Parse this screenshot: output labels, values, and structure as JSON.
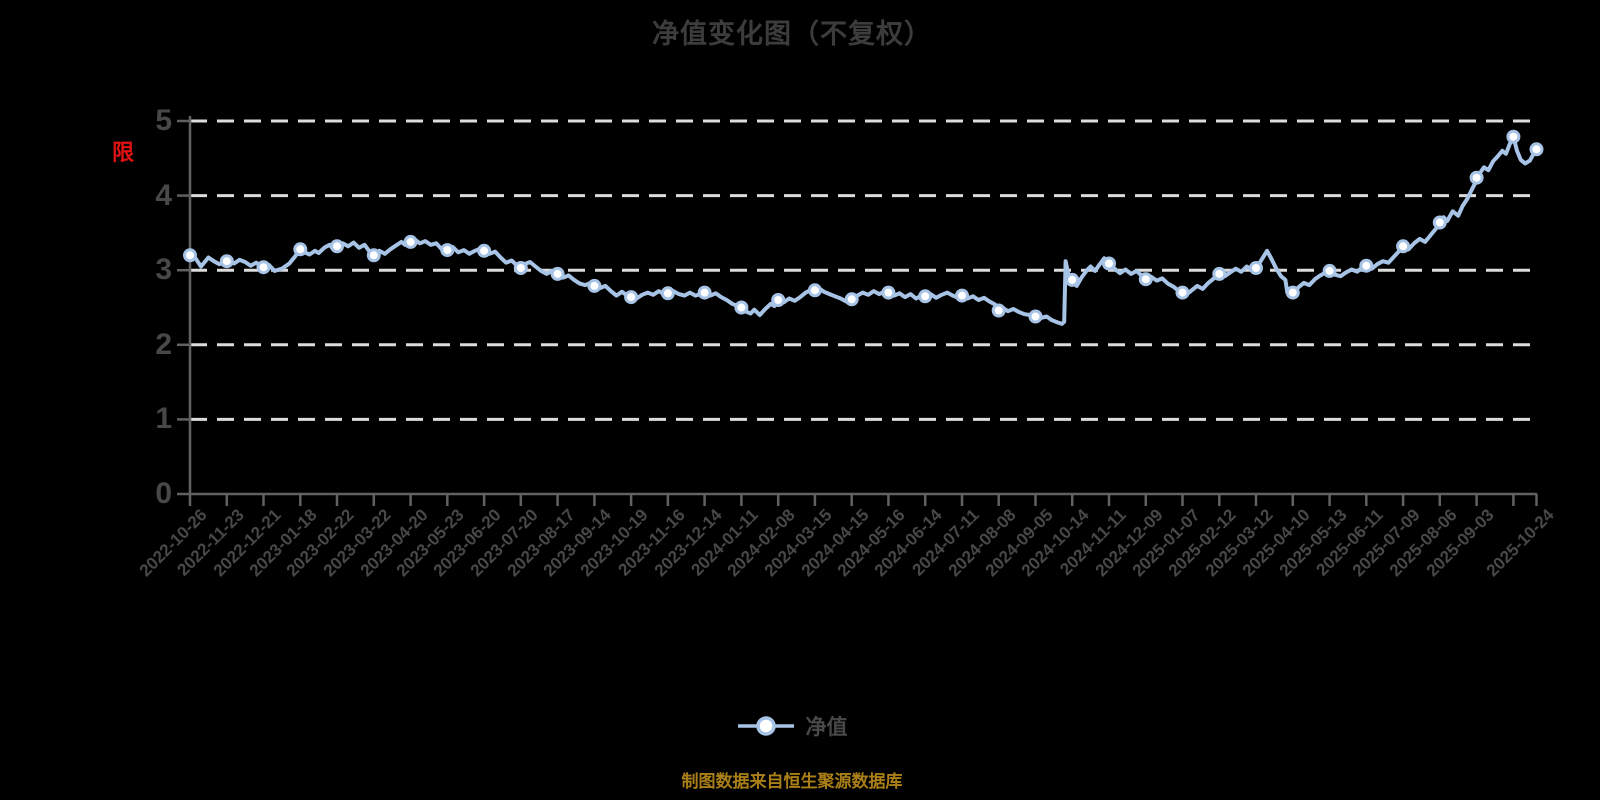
{
  "title": "净值变化图（不复权）",
  "watermark": "限",
  "legend": {
    "label": "净值"
  },
  "footer": "制图数据来自恒生聚源数据库",
  "colors": {
    "background": "#000000",
    "line": "#a7c3e6",
    "marker_fill": "#ffffff",
    "grid": "#dcdcdc",
    "axis": "#616161",
    "title_text": "#3c3c3c",
    "tick_text": "#484848",
    "legend_text": "#464646",
    "footer_text": "#aa7f18",
    "watermark_red": "#e31212"
  },
  "chart_data": {
    "type": "line",
    "title": "净值变化图（不复权）",
    "series_name": "净值",
    "ylabel": "",
    "xlabel": "",
    "ylim": [
      0,
      5
    ],
    "y_ticks": [
      0,
      1,
      2,
      3,
      4,
      5
    ],
    "grid": "horizontal-dashed-white",
    "legend_position": "bottom-center",
    "x_tick_labels": [
      "2022-10-26",
      "2022-11-23",
      "2022-12-21",
      "2023-01-18",
      "2023-02-22",
      "2023-03-22",
      "2023-04-20",
      "2023-05-23",
      "2023-06-20",
      "2023-07-20",
      "2023-08-17",
      "2023-09-14",
      "2023-10-19",
      "2023-11-16",
      "2023-12-14",
      "2024-01-11",
      "2024-02-08",
      "2024-03-15",
      "2024-04-15",
      "2024-05-16",
      "2024-06-14",
      "2024-07-11",
      "2024-08-08",
      "2024-09-05",
      "2024-10-14",
      "2024-11-11",
      "2024-12-09",
      "2025-01-07",
      "2025-02-12",
      "2025-03-12",
      "2025-04-10",
      "2025-05-13",
      "2025-06-11",
      "2025-07-09",
      "2025-08-06",
      "2025-09-03",
      "2025-10-24"
    ],
    "x_label_index": [
      0,
      1,
      2,
      3,
      4,
      5,
      6,
      7,
      8,
      9,
      10,
      11,
      12,
      13,
      14,
      15,
      16,
      17,
      18,
      19,
      20,
      21,
      22,
      23,
      24,
      25,
      26,
      27,
      28,
      29,
      30,
      31,
      32,
      33,
      34,
      35,
      36.63
    ],
    "all_tick_index": [
      0,
      1,
      2,
      3,
      4,
      5,
      6,
      7,
      8,
      9,
      10,
      11,
      12,
      13,
      14,
      15,
      16,
      17,
      18,
      19,
      20,
      21,
      22,
      23,
      24,
      25,
      26,
      27,
      28,
      29,
      30,
      31,
      32,
      33,
      34,
      35,
      36,
      36.63
    ],
    "markers": {
      "index": [
        0,
        1,
        2,
        3,
        4,
        5,
        6,
        7,
        8,
        9,
        10,
        11,
        12,
        13,
        14,
        15,
        16,
        17,
        18,
        19,
        20,
        21,
        22,
        23,
        24,
        25,
        26,
        27,
        28,
        29,
        30,
        31,
        32,
        33,
        34,
        35,
        36,
        36.63
      ],
      "values": [
        3.2,
        3.12,
        3.04,
        3.28,
        3.32,
        3.2,
        3.38,
        3.27,
        3.26,
        3.03,
        2.95,
        2.79,
        2.64,
        2.69,
        2.7,
        2.5,
        2.6,
        2.73,
        2.61,
        2.7,
        2.65,
        2.66,
        2.46,
        2.38,
        2.87,
        3.09,
        2.88,
        2.7,
        2.95,
        3.03,
        2.7,
        2.99,
        3.06,
        3.32,
        3.64,
        4.24,
        4.79,
        4.62
      ]
    },
    "line_path": [
      [
        0,
        3.2
      ],
      [
        0.15,
        3.16
      ],
      [
        0.3,
        3.05
      ],
      [
        0.5,
        3.17
      ],
      [
        0.65,
        3.12
      ],
      [
        0.8,
        3.08
      ],
      [
        1,
        3.12
      ],
      [
        1.2,
        3.09
      ],
      [
        1.35,
        3.14
      ],
      [
        1.5,
        3.11
      ],
      [
        1.65,
        3.06
      ],
      [
        1.8,
        3.1
      ],
      [
        2,
        3.04
      ],
      [
        2.15,
        3.07
      ],
      [
        2.3,
        2.99
      ],
      [
        2.5,
        3.02
      ],
      [
        2.7,
        3.09
      ],
      [
        2.85,
        3.18
      ],
      [
        3,
        3.28
      ],
      [
        3.12,
        3.24
      ],
      [
        3.25,
        3.21
      ],
      [
        3.4,
        3.26
      ],
      [
        3.5,
        3.23
      ],
      [
        3.65,
        3.3
      ],
      [
        3.8,
        3.34
      ],
      [
        3.9,
        3.28
      ],
      [
        4,
        3.32
      ],
      [
        4.15,
        3.36
      ],
      [
        4.3,
        3.32
      ],
      [
        4.45,
        3.37
      ],
      [
        4.6,
        3.3
      ],
      [
        4.75,
        3.34
      ],
      [
        4.9,
        3.24
      ],
      [
        5,
        3.2
      ],
      [
        5.15,
        3.26
      ],
      [
        5.3,
        3.22
      ],
      [
        5.45,
        3.28
      ],
      [
        5.6,
        3.33
      ],
      [
        5.75,
        3.38
      ],
      [
        5.85,
        3.34
      ],
      [
        6,
        3.38
      ],
      [
        6.1,
        3.42
      ],
      [
        6.25,
        3.36
      ],
      [
        6.4,
        3.39
      ],
      [
        6.55,
        3.34
      ],
      [
        6.7,
        3.36
      ],
      [
        6.85,
        3.28
      ],
      [
        6.95,
        3.24
      ],
      [
        7,
        3.27
      ],
      [
        7.15,
        3.31
      ],
      [
        7.3,
        3.24
      ],
      [
        7.45,
        3.27
      ],
      [
        7.6,
        3.22
      ],
      [
        7.75,
        3.26
      ],
      [
        7.9,
        3.29
      ],
      [
        8,
        3.26
      ],
      [
        8.15,
        3.22
      ],
      [
        8.3,
        3.25
      ],
      [
        8.45,
        3.17
      ],
      [
        8.6,
        3.1
      ],
      [
        8.75,
        3.13
      ],
      [
        8.9,
        3.06
      ],
      [
        9,
        3.03
      ],
      [
        9.1,
        3.08
      ],
      [
        9.25,
        3.11
      ],
      [
        9.4,
        3.05
      ],
      [
        9.55,
        2.99
      ],
      [
        9.7,
        2.95
      ],
      [
        9.85,
        2.99
      ],
      [
        10,
        2.95
      ],
      [
        10.15,
        2.9
      ],
      [
        10.3,
        2.93
      ],
      [
        10.45,
        2.87
      ],
      [
        10.6,
        2.82
      ],
      [
        10.75,
        2.8
      ],
      [
        10.9,
        2.83
      ],
      [
        11,
        2.79
      ],
      [
        11.15,
        2.76
      ],
      [
        11.3,
        2.79
      ],
      [
        11.45,
        2.72
      ],
      [
        11.6,
        2.66
      ],
      [
        11.75,
        2.71
      ],
      [
        11.9,
        2.66
      ],
      [
        12,
        2.64
      ],
      [
        12.15,
        2.62
      ],
      [
        12.3,
        2.67
      ],
      [
        12.45,
        2.7
      ],
      [
        12.6,
        2.67
      ],
      [
        12.75,
        2.72
      ],
      [
        12.9,
        2.68
      ],
      [
        13,
        2.69
      ],
      [
        13.15,
        2.72
      ],
      [
        13.3,
        2.68
      ],
      [
        13.45,
        2.66
      ],
      [
        13.6,
        2.7
      ],
      [
        13.75,
        2.66
      ],
      [
        13.9,
        2.68
      ],
      [
        14,
        2.7
      ],
      [
        14.15,
        2.66
      ],
      [
        14.3,
        2.69
      ],
      [
        14.45,
        2.64
      ],
      [
        14.6,
        2.6
      ],
      [
        14.75,
        2.55
      ],
      [
        14.9,
        2.52
      ],
      [
        15,
        2.5
      ],
      [
        15.1,
        2.45
      ],
      [
        15.25,
        2.42
      ],
      [
        15.35,
        2.47
      ],
      [
        15.5,
        2.4
      ],
      [
        15.65,
        2.48
      ],
      [
        15.8,
        2.55
      ],
      [
        15.9,
        2.52
      ],
      [
        16,
        2.6
      ],
      [
        16.15,
        2.57
      ],
      [
        16.3,
        2.62
      ],
      [
        16.45,
        2.59
      ],
      [
        16.6,
        2.64
      ],
      [
        16.75,
        2.7
      ],
      [
        16.9,
        2.74
      ],
      [
        17,
        2.73
      ],
      [
        17.1,
        2.76
      ],
      [
        17.25,
        2.71
      ],
      [
        17.4,
        2.68
      ],
      [
        17.55,
        2.65
      ],
      [
        17.7,
        2.62
      ],
      [
        17.85,
        2.58
      ],
      [
        18,
        2.61
      ],
      [
        18.15,
        2.66
      ],
      [
        18.3,
        2.7
      ],
      [
        18.45,
        2.67
      ],
      [
        18.6,
        2.72
      ],
      [
        18.75,
        2.68
      ],
      [
        18.9,
        2.72
      ],
      [
        19,
        2.7
      ],
      [
        19.15,
        2.66
      ],
      [
        19.3,
        2.69
      ],
      [
        19.45,
        2.64
      ],
      [
        19.6,
        2.68
      ],
      [
        19.75,
        2.62
      ],
      [
        19.9,
        2.66
      ],
      [
        20,
        2.65
      ],
      [
        20.15,
        2.68
      ],
      [
        20.3,
        2.63
      ],
      [
        20.45,
        2.67
      ],
      [
        20.6,
        2.7
      ],
      [
        20.75,
        2.66
      ],
      [
        20.9,
        2.63
      ],
      [
        21,
        2.66
      ],
      [
        21.15,
        2.62
      ],
      [
        21.3,
        2.65
      ],
      [
        21.45,
        2.6
      ],
      [
        21.6,
        2.63
      ],
      [
        21.75,
        2.58
      ],
      [
        21.9,
        2.54
      ],
      [
        22,
        2.46
      ],
      [
        22.1,
        2.5
      ],
      [
        22.25,
        2.45
      ],
      [
        22.4,
        2.48
      ],
      [
        22.55,
        2.44
      ],
      [
        22.7,
        2.41
      ],
      [
        22.85,
        2.4
      ],
      [
        23,
        2.38
      ],
      [
        23.15,
        2.36
      ],
      [
        23.3,
        2.38
      ],
      [
        23.45,
        2.33
      ],
      [
        23.6,
        2.3
      ],
      [
        23.72,
        2.28
      ],
      [
        23.78,
        2.31
      ],
      [
        23.82,
        3.12
      ],
      [
        23.9,
        2.93
      ],
      [
        24,
        2.87
      ],
      [
        24.12,
        2.79
      ],
      [
        24.25,
        2.9
      ],
      [
        24.4,
        3.0
      ],
      [
        24.5,
        3.05
      ],
      [
        24.62,
        2.99
      ],
      [
        24.75,
        3.08
      ],
      [
        24.87,
        3.16
      ],
      [
        25,
        3.09
      ],
      [
        25.15,
        3.02
      ],
      [
        25.3,
        2.96
      ],
      [
        25.45,
        3.01
      ],
      [
        25.6,
        2.95
      ],
      [
        25.75,
        2.99
      ],
      [
        25.9,
        2.92
      ],
      [
        26,
        2.88
      ],
      [
        26.15,
        2.91
      ],
      [
        26.3,
        2.86
      ],
      [
        26.45,
        2.89
      ],
      [
        26.6,
        2.82
      ],
      [
        26.75,
        2.78
      ],
      [
        26.9,
        2.72
      ],
      [
        27,
        2.7
      ],
      [
        27.1,
        2.67
      ],
      [
        27.25,
        2.73
      ],
      [
        27.4,
        2.79
      ],
      [
        27.55,
        2.75
      ],
      [
        27.7,
        2.83
      ],
      [
        27.85,
        2.89
      ],
      [
        28,
        2.95
      ],
      [
        28.15,
        2.92
      ],
      [
        28.3,
        2.97
      ],
      [
        28.45,
        3.02
      ],
      [
        28.6,
        2.98
      ],
      [
        28.75,
        3.05
      ],
      [
        28.9,
        3.0
      ],
      [
        29,
        3.03
      ],
      [
        29.1,
        3.1
      ],
      [
        29.2,
        3.18
      ],
      [
        29.3,
        3.26
      ],
      [
        29.42,
        3.15
      ],
      [
        29.55,
        3.02
      ],
      [
        29.68,
        2.92
      ],
      [
        29.8,
        2.87
      ],
      [
        29.85,
        2.7
      ],
      [
        30,
        2.7
      ],
      [
        30.15,
        2.77
      ],
      [
        30.3,
        2.83
      ],
      [
        30.45,
        2.8
      ],
      [
        30.6,
        2.88
      ],
      [
        30.75,
        2.93
      ],
      [
        30.9,
        2.97
      ],
      [
        31,
        2.99
      ],
      [
        31.15,
        2.94
      ],
      [
        31.3,
        2.92
      ],
      [
        31.45,
        2.97
      ],
      [
        31.6,
        3.01
      ],
      [
        31.75,
        2.98
      ],
      [
        31.9,
        3.04
      ],
      [
        32,
        3.06
      ],
      [
        32.15,
        3.02
      ],
      [
        32.3,
        3.08
      ],
      [
        32.45,
        3.12
      ],
      [
        32.6,
        3.1
      ],
      [
        32.75,
        3.18
      ],
      [
        32.9,
        3.26
      ],
      [
        33,
        3.32
      ],
      [
        33.15,
        3.28
      ],
      [
        33.3,
        3.36
      ],
      [
        33.45,
        3.42
      ],
      [
        33.6,
        3.38
      ],
      [
        33.75,
        3.47
      ],
      [
        33.9,
        3.56
      ],
      [
        34,
        3.64
      ],
      [
        34.1,
        3.71
      ],
      [
        34.2,
        3.66
      ],
      [
        34.35,
        3.79
      ],
      [
        34.5,
        3.73
      ],
      [
        34.62,
        3.86
      ],
      [
        34.75,
        3.96
      ],
      [
        34.85,
        4.06
      ],
      [
        34.95,
        4.16
      ],
      [
        35,
        4.24
      ],
      [
        35.1,
        4.31
      ],
      [
        35.2,
        4.38
      ],
      [
        35.32,
        4.34
      ],
      [
        35.45,
        4.46
      ],
      [
        35.58,
        4.53
      ],
      [
        35.7,
        4.6
      ],
      [
        35.8,
        4.56
      ],
      [
        35.9,
        4.69
      ],
      [
        36,
        4.79
      ],
      [
        36.1,
        4.6
      ],
      [
        36.2,
        4.48
      ],
      [
        36.32,
        4.43
      ],
      [
        36.45,
        4.47
      ],
      [
        36.55,
        4.56
      ],
      [
        36.63,
        4.62
      ]
    ]
  }
}
